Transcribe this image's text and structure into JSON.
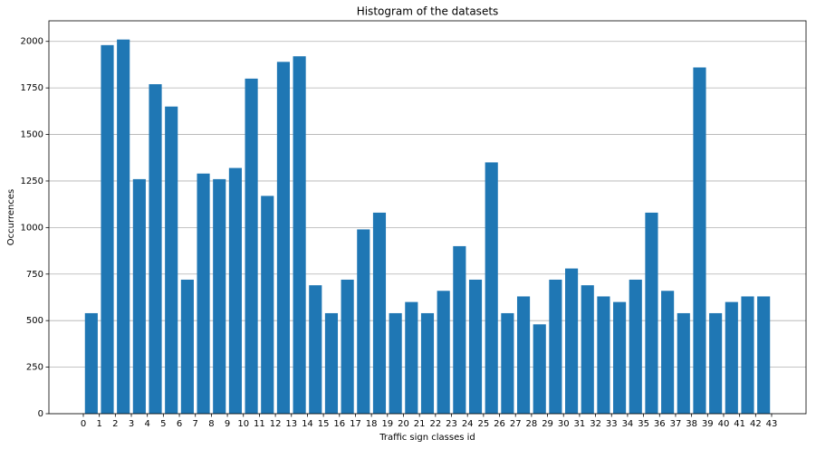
{
  "chart_data": {
    "type": "histogram",
    "title": "Histogram of the datasets",
    "x_label": "Traffic sign classes id",
    "y_label": "Occurrences",
    "bins": [
      0,
      1,
      2,
      3,
      4,
      5,
      6,
      7,
      8,
      9,
      10,
      11,
      12,
      13,
      14,
      15,
      16,
      17,
      18,
      19,
      20,
      21,
      22,
      23,
      24,
      25,
      26,
      27,
      28,
      29,
      30,
      31,
      32,
      33,
      34,
      35,
      36,
      37,
      38,
      39,
      40,
      41,
      42,
      43
    ],
    "values": [
      540,
      1980,
      2010,
      1260,
      1770,
      1650,
      720,
      1290,
      1260,
      1320,
      1800,
      1170,
      1890,
      1920,
      690,
      540,
      720,
      990,
      1080,
      540,
      600,
      540,
      660,
      900,
      720,
      1350,
      540,
      630,
      480,
      720,
      780,
      690,
      630,
      600,
      720,
      1080,
      660,
      540,
      1860,
      540,
      600,
      630,
      630
    ],
    "color": "#1f77b4",
    "xlim": [
      -2.15,
      45.15
    ],
    "xticks": [
      0,
      1,
      2,
      3,
      4,
      5,
      6,
      7,
      8,
      9,
      10,
      11,
      12,
      13,
      14,
      15,
      16,
      17,
      18,
      19,
      20,
      21,
      22,
      23,
      24,
      25,
      26,
      27,
      28,
      29,
      30,
      31,
      32,
      33,
      34,
      35,
      36,
      37,
      38,
      39,
      40,
      41,
      42,
      43
    ],
    "ylim": [
      0,
      2110.5
    ],
    "yticks": [
      0,
      250,
      500,
      750,
      1000,
      1250,
      1500,
      1750,
      2000
    ],
    "grid": "y"
  }
}
